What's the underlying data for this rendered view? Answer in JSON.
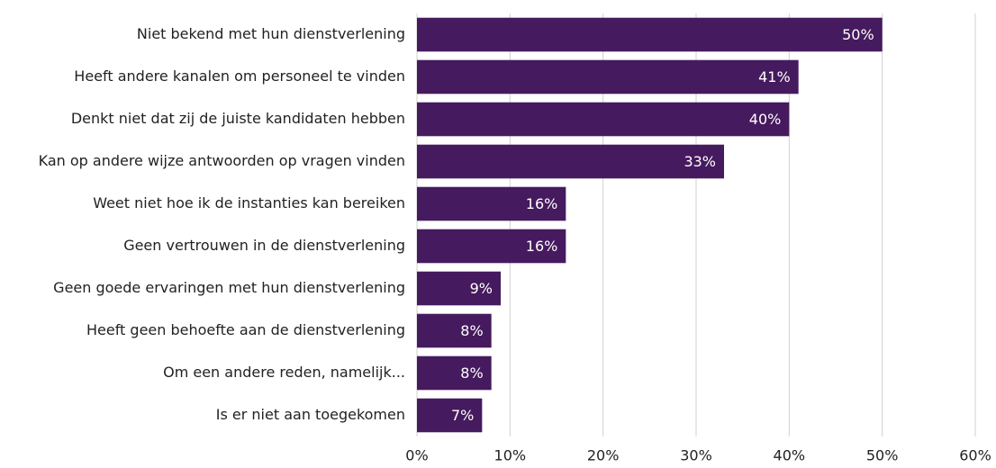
{
  "chart_data": {
    "type": "bar",
    "orientation": "horizontal",
    "categories": [
      "Niet bekend met hun dienstverlening",
      "Heeft andere kanalen om personeel te vinden",
      "Denkt niet dat zij de juiste kandidaten hebben",
      "Kan op andere wijze antwoorden op vragen vinden",
      "Weet niet hoe ik de instanties kan bereiken",
      "Geen vertrouwen in de dienstverlening",
      "Geen goede ervaringen met hun dienstverlening",
      "Heeft geen behoefte aan de dienstverlening",
      "Om een andere reden, namelijk...",
      "Is er niet aan toegekomen"
    ],
    "values": [
      50,
      41,
      40,
      33,
      16,
      16,
      9,
      8,
      8,
      7
    ],
    "value_labels": [
      "50%",
      "41%",
      "40%",
      "33%",
      "16%",
      "16%",
      "9%",
      "8%",
      "8%",
      "7%"
    ],
    "color": "#461a5e",
    "xlim": [
      0,
      60
    ],
    "xticks": [
      {
        "value": 0,
        "label": "0%"
      },
      {
        "value": 10,
        "label": "10%"
      },
      {
        "value": 20,
        "label": "20%"
      },
      {
        "value": 30,
        "label": "30%"
      },
      {
        "value": 40,
        "label": "40%"
      },
      {
        "value": 50,
        "label": "50%"
      },
      {
        "value": 60,
        "label": "60%"
      }
    ],
    "grid": true
  }
}
